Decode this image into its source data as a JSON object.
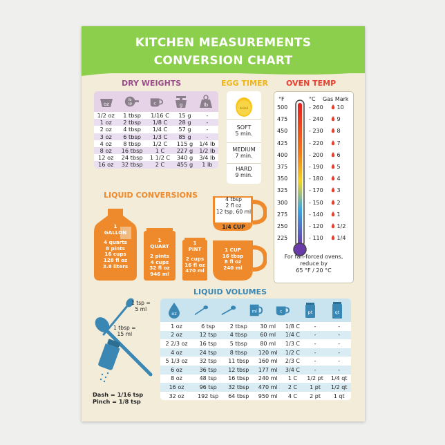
{
  "title_line1": "KITCHEN MEASUREMENTS",
  "title_line2": "CONVERSION CHART",
  "colors": {
    "banner": "#8ccf4d",
    "dry": "#9b4d8c",
    "egg": "#f0b417",
    "oven": "#e8402f",
    "liquid": "#ef8a2c",
    "volumes": "#3a87b3"
  },
  "dry_weights": {
    "title": "DRY WEIGHTS",
    "headers": [
      {
        "label": "oz",
        "icon": "scoop-icon"
      },
      {
        "label": "lb sp",
        "icon": "pan-icon"
      },
      {
        "label": "c",
        "icon": "cup-icon"
      },
      {
        "label": "g",
        "icon": "scale-icon"
      },
      {
        "label": "lb",
        "icon": "weight-icon"
      }
    ],
    "rows": [
      [
        "1/2 oz",
        "1 tbsp",
        "1/16 C",
        "15 g",
        "-"
      ],
      [
        "1 oz",
        "2 tbsp",
        "1/8 C",
        "28 g",
        "-"
      ],
      [
        "2 oz",
        "4 tbsp",
        "1/4 C",
        "57 g",
        "-"
      ],
      [
        "3 oz",
        "6 tbsp",
        "1/3 C",
        "85 g",
        "-"
      ],
      [
        "4 oz",
        "8 tbsp",
        "1/2 C",
        "115 g",
        "1/4 lb"
      ],
      [
        "8 oz",
        "16 tbsp",
        "1 C",
        "227 g",
        "1/2 lb"
      ],
      [
        "12 oz",
        "24 tbsp",
        "1 1/2 C",
        "340 g",
        "3/4 lb"
      ],
      [
        "16 oz",
        "32 tbsp",
        "2 C",
        "455 g",
        "1 lb"
      ]
    ]
  },
  "egg_timer": {
    "title": "EGG TIMER",
    "egg_label": "boiled",
    "items": [
      {
        "name": "SOFT",
        "time": "5 min."
      },
      {
        "name": "MEDIUM",
        "time": "7 min."
      },
      {
        "name": "HARD",
        "time": "9 min."
      }
    ]
  },
  "oven_temp": {
    "title": "OVEN TEMP",
    "col_f": "°F",
    "col_c": "°C",
    "col_gas": "Gas Mark",
    "rows": [
      {
        "f": "500",
        "c": "260",
        "gas": "10"
      },
      {
        "f": "475",
        "c": "240",
        "gas": "9"
      },
      {
        "f": "450",
        "c": "230",
        "gas": "8"
      },
      {
        "f": "425",
        "c": "220",
        "gas": "7"
      },
      {
        "f": "400",
        "c": "200",
        "gas": "6"
      },
      {
        "f": "375",
        "c": "190",
        "gas": "5"
      },
      {
        "f": "350",
        "c": "180",
        "gas": "4"
      },
      {
        "f": "325",
        "c": "170",
        "gas": "3"
      },
      {
        "f": "300",
        "c": "150",
        "gas": "2"
      },
      {
        "f": "275",
        "c": "140",
        "gas": "1"
      },
      {
        "f": "250",
        "c": "120",
        "gas": "1/2"
      },
      {
        "f": "225",
        "c": "110",
        "gas": "1/4"
      }
    ],
    "note1": "For fan-forced ovens,",
    "note2": "reduce by",
    "note3": "65 °F / 20 °C"
  },
  "liquid_conversions": {
    "title": "LIQUID CONVERSIONS",
    "quarter_cup": {
      "lines": [
        "4 tbsp",
        "2 fl oz",
        "12 tsp, 60 ml"
      ],
      "label": "1/4 CUP"
    },
    "gallon": {
      "name1": "1",
      "name2": "GALLON",
      "lines": [
        "4 quarts",
        "8 pints",
        "16 cups",
        "128 fl oz",
        "3.8 liters"
      ]
    },
    "quart": {
      "name1": "1",
      "name2": "QUART",
      "lines": [
        "2 pints",
        "4 cups",
        "32 fl oz",
        "946 ml"
      ]
    },
    "pint": {
      "name1": "1",
      "name2": "PINT",
      "lines": [
        "2 cups",
        "16 fl oz",
        "470 ml"
      ]
    },
    "cup": {
      "name": "1 CUP",
      "lines": [
        "16 tbsp",
        "8 fl oz",
        "240 ml"
      ]
    }
  },
  "liquid_volumes": {
    "title": "LIQUID VOLUMES",
    "headers": [
      {
        "label": "oz",
        "icon": "drop-icon"
      },
      {
        "label": "",
        "icon": "teaspoon-icon"
      },
      {
        "label": "",
        "icon": "tablespoon-icon"
      },
      {
        "label": "ml",
        "icon": "measuring-jug-icon"
      },
      {
        "label": "c",
        "icon": "cup-icon"
      },
      {
        "label": "pt",
        "icon": "pint-icon"
      },
      {
        "label": "qt",
        "icon": "quart-icon"
      }
    ],
    "rows": [
      [
        "1 oz",
        "6 tsp",
        "2 tbsp",
        "30 ml",
        "1/8 C",
        "-",
        "-"
      ],
      [
        "2 oz",
        "12 tsp",
        "4 tbsp",
        "60 ml",
        "1/4 C",
        "-",
        "-"
      ],
      [
        "2 2/3 oz",
        "16 tsp",
        "5 tbsp",
        "80 ml",
        "1/3 C",
        "-",
        "-"
      ],
      [
        "4 oz",
        "24 tsp",
        "8 tbsp",
        "120 ml",
        "1/2 C",
        "-",
        "-"
      ],
      [
        "5 1/3 oz",
        "32 tsp",
        "11 tbsp",
        "160 ml",
        "2/3 C",
        "-",
        "-"
      ],
      [
        "6 oz",
        "36 tsp",
        "12 tbsp",
        "177 ml",
        "3/4 C",
        "-",
        "-"
      ],
      [
        "8 oz",
        "48 tsp",
        "16 tbsp",
        "240 ml",
        "1 C",
        "1/2 pt",
        "1/4 qt"
      ],
      [
        "16 oz",
        "96 tsp",
        "32 tbsp",
        "470 ml",
        "2 C",
        "1 pt",
        "1/2 qt"
      ],
      [
        "32 oz",
        "192 tsp",
        "64 tbsp",
        "950 ml",
        "4 C",
        "2 pt",
        "1 qt"
      ]
    ]
  },
  "spoons": {
    "tsp": "1 tsp =",
    "tsp_ml": "5 ml",
    "tbsp": "1 tbsp =",
    "tbsp_ml": "15 ml",
    "dash": "Dash = 1/16 tsp",
    "pinch": "Pinch = 1/8 tsp"
  }
}
